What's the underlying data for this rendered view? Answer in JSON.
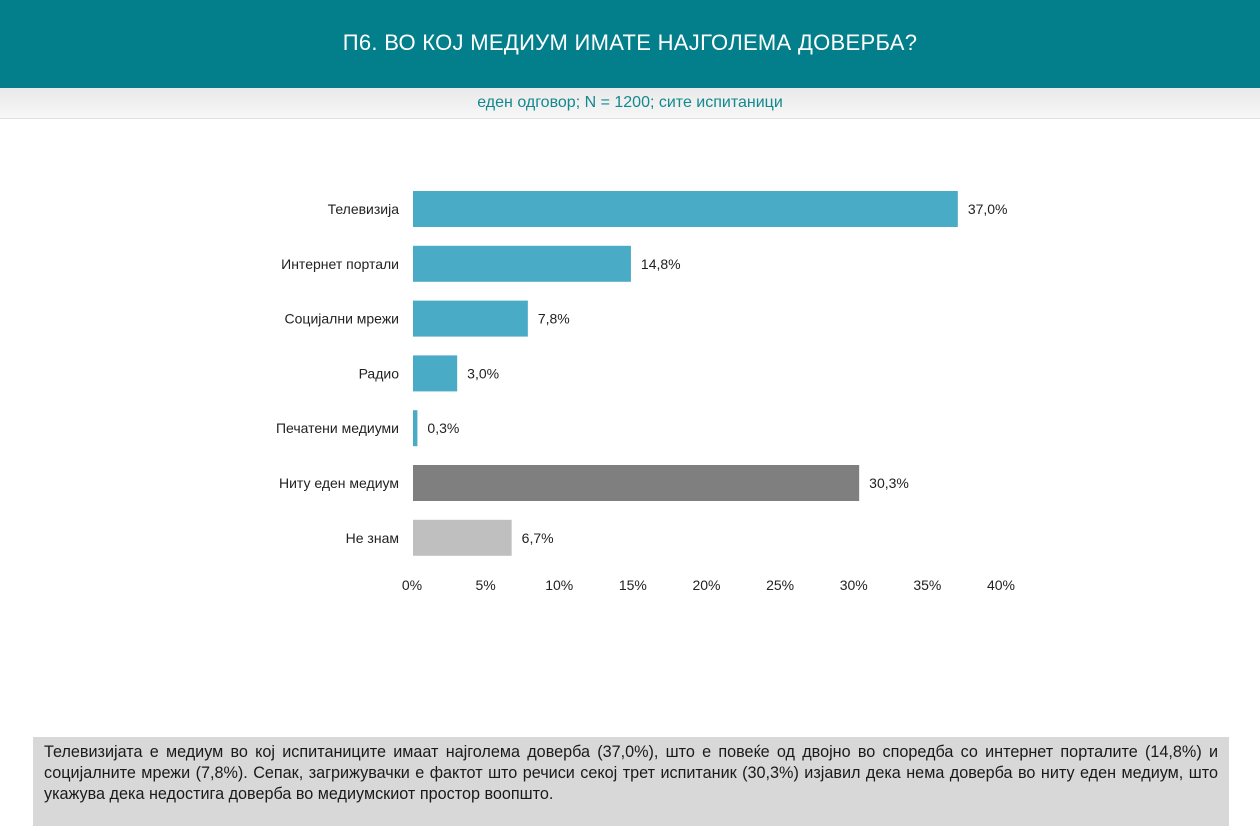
{
  "header": {
    "title": "П6. ВО КОЈ МЕДИУМ ИМАТЕ НАЈГОЛЕМА ДОВЕРБА?",
    "subtitle": "еден одговор; N = 1200; сите испитаници"
  },
  "chart_data": {
    "type": "bar",
    "orientation": "horizontal",
    "title": "П6. ВО КОЈ МЕДИУМ ИМАТЕ НАЈГОЛЕМА ДОВЕРБА?",
    "categories": [
      "Телевизија",
      "Интернет портали",
      "Социјални  мрежи",
      "Радио",
      "Печатени медиуми",
      "Ниту еден медиум",
      "Не знам"
    ],
    "values": [
      37.0,
      14.8,
      7.8,
      3.0,
      0.3,
      30.3,
      6.7
    ],
    "value_labels": [
      "37,0%",
      "14,8%",
      "7,8%",
      "3,0%",
      "0,3%",
      "30,3%",
      "6,7%"
    ],
    "colors": [
      "#4aabc6",
      "#4aabc6",
      "#4aabc6",
      "#4aabc6",
      "#4aabc6",
      "#7f7f7f",
      "#bfbfbf"
    ],
    "xlim": [
      0,
      40
    ],
    "xticks": [
      0,
      5,
      10,
      15,
      20,
      25,
      30,
      35,
      40
    ],
    "xtick_labels": [
      "0%",
      "5%",
      "10%",
      "15%",
      "20%",
      "25%",
      "30%",
      "35%",
      "40%"
    ],
    "grid": false,
    "xlabel": "",
    "ylabel": ""
  },
  "summary": {
    "text": "Телевизијата е медиум во кој испитаниците имаат најголема доверба (37,0%), што е повеќе од двојно во споредба со интернет порталите (14,8%) и социјалните мрежи (7,8%). Сепак, загрижувачки е фактот што речиси секој трет испитаник (30,3%) изјавил дека нема доверба во ниту еден медиум, што укажува дека недостига доверба во медиумскиот простор воопшто."
  }
}
